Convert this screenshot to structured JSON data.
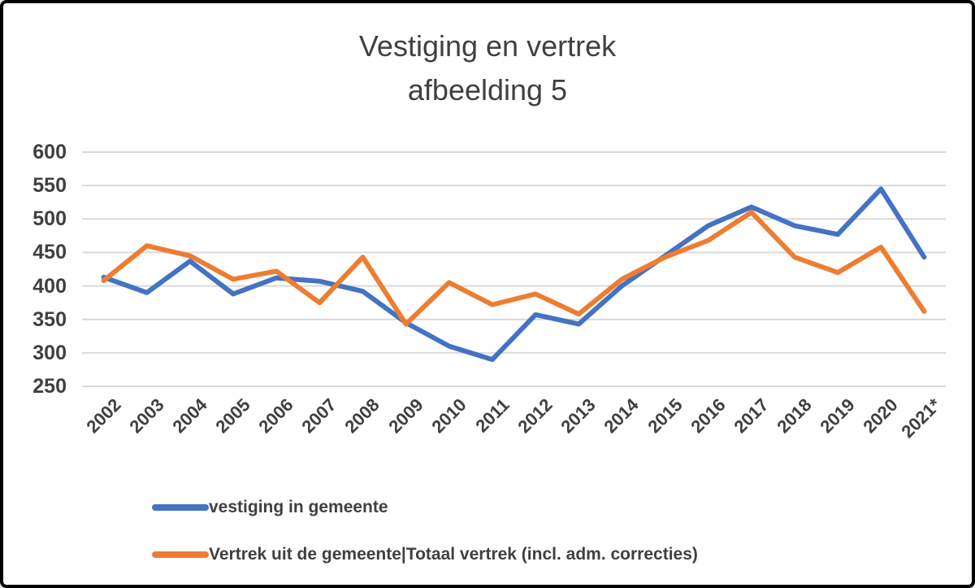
{
  "chart_data": {
    "type": "line",
    "title": "Vestiging en vertrek",
    "subtitle": "afbeelding 5",
    "xlabel": "",
    "ylabel": "",
    "categories": [
      "2002",
      "2003",
      "2004",
      "2005",
      "2006",
      "2007",
      "2008",
      "2009",
      "2010",
      "2011",
      "2012",
      "2013",
      "2014",
      "2015",
      "2016",
      "2017",
      "2018",
      "2019",
      "2020",
      "2021*"
    ],
    "series": [
      {
        "name": "vestiging in gemeente",
        "color": "#4472C4",
        "values": [
          413,
          390,
          437,
          388,
          412,
          407,
          392,
          345,
          310,
          290,
          357,
          343,
          400,
          445,
          490,
          518,
          490,
          477,
          545,
          443
        ]
      },
      {
        "name": "Vertrek uit de gemeente|Totaal vertrek (incl. adm. correcties)",
        "color": "#ED7D31",
        "values": [
          408,
          460,
          445,
          410,
          422,
          375,
          443,
          343,
          405,
          372,
          388,
          358,
          410,
          443,
          468,
          510,
          443,
          420,
          458,
          362
        ]
      }
    ],
    "y_ticks": [
      600,
      550,
      500,
      450,
      400,
      350,
      300,
      250
    ],
    "ylim": [
      250,
      600
    ],
    "grid": true,
    "gridline_color": "#D9D9D9",
    "text_color": "#404040",
    "legend_position": "bottom-left",
    "x_label_rotation_deg": -45
  }
}
